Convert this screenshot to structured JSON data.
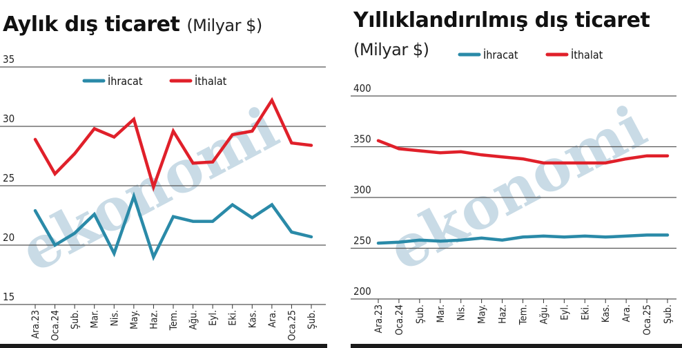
{
  "colors": {
    "export": "#2a8aa8",
    "import": "#e0202a",
    "grid": "#555555",
    "watermark": "#c9dbe6"
  },
  "watermark": "ekonomi",
  "chart_data": [
    {
      "type": "line",
      "title": "Aylık dış ticaret",
      "unit": "(Milyar $)",
      "categories": [
        "Ara.23",
        "Oca.24",
        "Şub.",
        "Mar.",
        "Nis.",
        "May.",
        "Haz.",
        "Tem.",
        "Ağu.",
        "Eyl.",
        "Eki.",
        "Kas.",
        "Ara.",
        "Oca.25",
        "Şub."
      ],
      "series": [
        {
          "name": "İhracat",
          "values": [
            22.9,
            20.0,
            21.0,
            22.6,
            19.3,
            24.1,
            19.0,
            22.4,
            22.0,
            22.0,
            23.4,
            22.3,
            23.4,
            21.1,
            20.7
          ]
        },
        {
          "name": "İthalat",
          "values": [
            28.9,
            26.0,
            27.7,
            29.8,
            29.1,
            30.6,
            24.9,
            29.6,
            26.9,
            27.0,
            29.3,
            29.6,
            32.2,
            28.6,
            28.4
          ]
        }
      ],
      "ylim": [
        15,
        35
      ],
      "yticks": [
        15,
        20,
        25,
        30,
        35
      ],
      "legend": "top-right",
      "grid": true
    },
    {
      "type": "line",
      "title": "Yıllıklandırılmış dış ticaret",
      "unit": "(Milyar $)",
      "categories": [
        "Ara.23",
        "Oca.24",
        "Şub.",
        "Mar.",
        "Nis.",
        "May.",
        "Haz.",
        "Tem.",
        "Ağu.",
        "Eyl.",
        "Eki.",
        "Kas.",
        "Ara.",
        "Oca.25",
        "Şub."
      ],
      "series": [
        {
          "name": "İhracat",
          "values": [
            255,
            256,
            258,
            257,
            258,
            260,
            258,
            261,
            262,
            261,
            262,
            261,
            262,
            263,
            263
          ]
        },
        {
          "name": "İthalat",
          "values": [
            356,
            348,
            346,
            344,
            345,
            342,
            340,
            338,
            334,
            334,
            334,
            334,
            338,
            341,
            341
          ]
        }
      ],
      "ylim": [
        200,
        400
      ],
      "yticks": [
        200,
        250,
        300,
        350,
        400
      ],
      "legend": "top",
      "grid": true
    }
  ]
}
